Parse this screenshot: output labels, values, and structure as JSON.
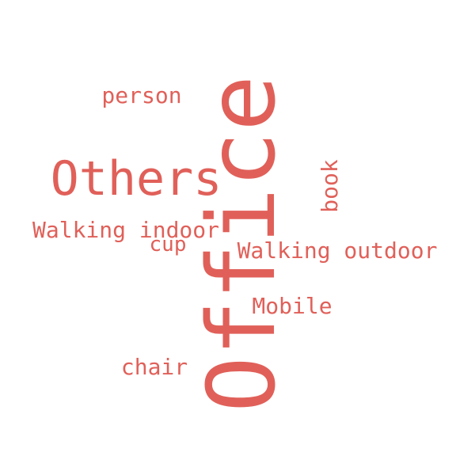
{
  "wordcloud": {
    "color": "#e06059",
    "words": [
      {
        "text": "Office",
        "orientation": "vertical"
      },
      {
        "text": "Others",
        "orientation": "horizontal"
      },
      {
        "text": "person",
        "orientation": "horizontal"
      },
      {
        "text": "book",
        "orientation": "vertical"
      },
      {
        "text": "Walking indoor",
        "orientation": "horizontal"
      },
      {
        "text": "cup",
        "orientation": "horizontal"
      },
      {
        "text": "Walking outdoor",
        "orientation": "horizontal"
      },
      {
        "text": "Mobile",
        "orientation": "horizontal"
      },
      {
        "text": "chair",
        "orientation": "horizontal"
      }
    ]
  }
}
